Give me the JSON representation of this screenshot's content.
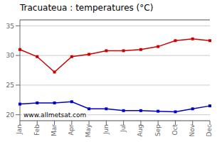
{
  "chart_data": {
    "type": "line",
    "title": "Tracuateua : temperatures (°C)",
    "categories": [
      "Jan",
      "Feb",
      "Mar",
      "Apr",
      "May",
      "Jun",
      "Jul",
      "Aug",
      "Sep",
      "Oct",
      "Nov",
      "Dec"
    ],
    "series": [
      {
        "color": "#cc0000",
        "marker": "square",
        "values": [
          31.0,
          29.8,
          27.2,
          29.8,
          30.2,
          30.8,
          30.8,
          31.0,
          31.5,
          32.5,
          32.8,
          32.5
        ]
      },
      {
        "color": "#0000cc",
        "marker": "square",
        "values": [
          21.8,
          22.0,
          22.0,
          22.2,
          21.0,
          21.0,
          20.7,
          20.7,
          20.6,
          20.5,
          21.0,
          21.5
        ]
      }
    ],
    "ylim": [
      19.0,
      36.0
    ],
    "yticks": [
      20,
      25,
      30,
      35
    ],
    "grid": true,
    "annotations": [
      "www.allmetsat.com"
    ]
  }
}
